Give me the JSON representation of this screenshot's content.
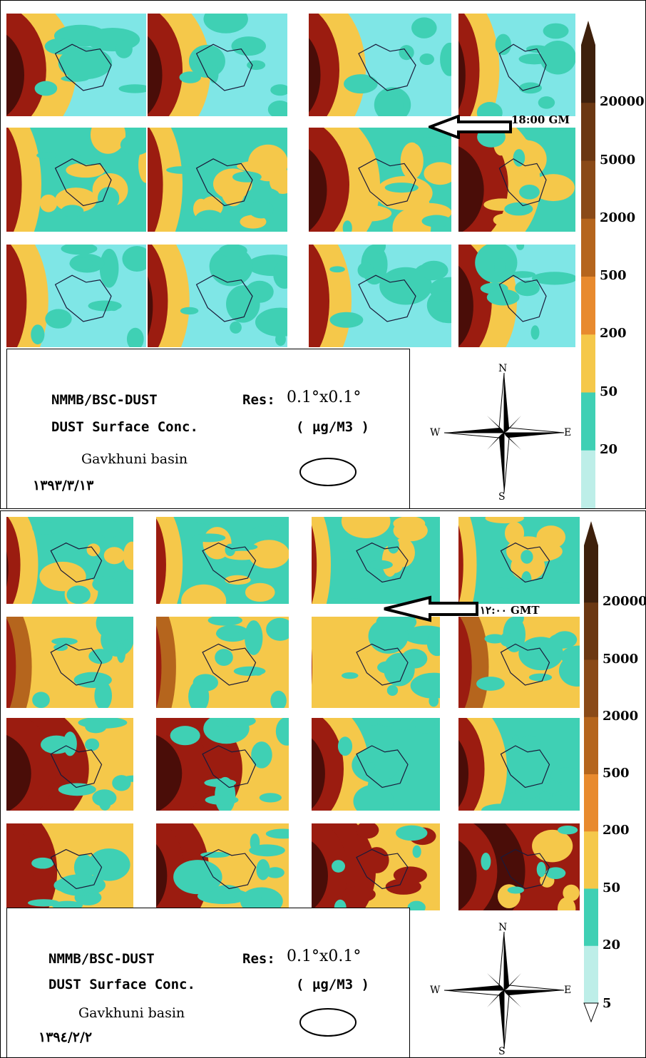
{
  "panels": [
    {
      "legend": {
        "model": "NMMB/BSC-DUST",
        "res": "Res:",
        "res_value": "0.1°x0.1°",
        "product": "DUST Surface Conc.",
        "unit": "( µg/M3 )",
        "basin": "Gavkhuni basin",
        "date": "١٣٩٣/٣/١٣"
      },
      "arrow_label": "18:00 GM",
      "scale_ticks": [
        "20000",
        "5000",
        "2000",
        "500",
        "200",
        "50",
        "20"
      ],
      "compass": {
        "n": "N",
        "s": "S",
        "e": "E",
        "w": "W"
      }
    },
    {
      "legend": {
        "model": "NMMB/BSC-DUST",
        "res": "Res:",
        "res_value": "0.1°x0.1°",
        "product": "DUST Surface Conc.",
        "unit": "( µg/M3 )",
        "basin": "Gavkhuni basin",
        "date": "١٣٩٤/٢/٢"
      },
      "arrow_label": "١٢:٠٠ GMT",
      "scale_ticks": [
        "20000",
        "5000",
        "2000",
        "500",
        "200",
        "50",
        "20",
        "5"
      ],
      "compass": {
        "n": "N",
        "s": "S",
        "e": "E",
        "w": "W"
      }
    }
  ],
  "colors": {
    "c5": "#bdeee8",
    "c20": "#3fd0b4",
    "c50": "#f5c84a",
    "c200": "#e88a2e",
    "c500": "#b5651d",
    "c2000": "#8a4a18",
    "c5000": "#6b3712",
    "c20000": "#3e200c",
    "dark_red": "#9b1c10",
    "very_dark": "#4a0d08",
    "cyan_bg": "#7fe6e6"
  }
}
